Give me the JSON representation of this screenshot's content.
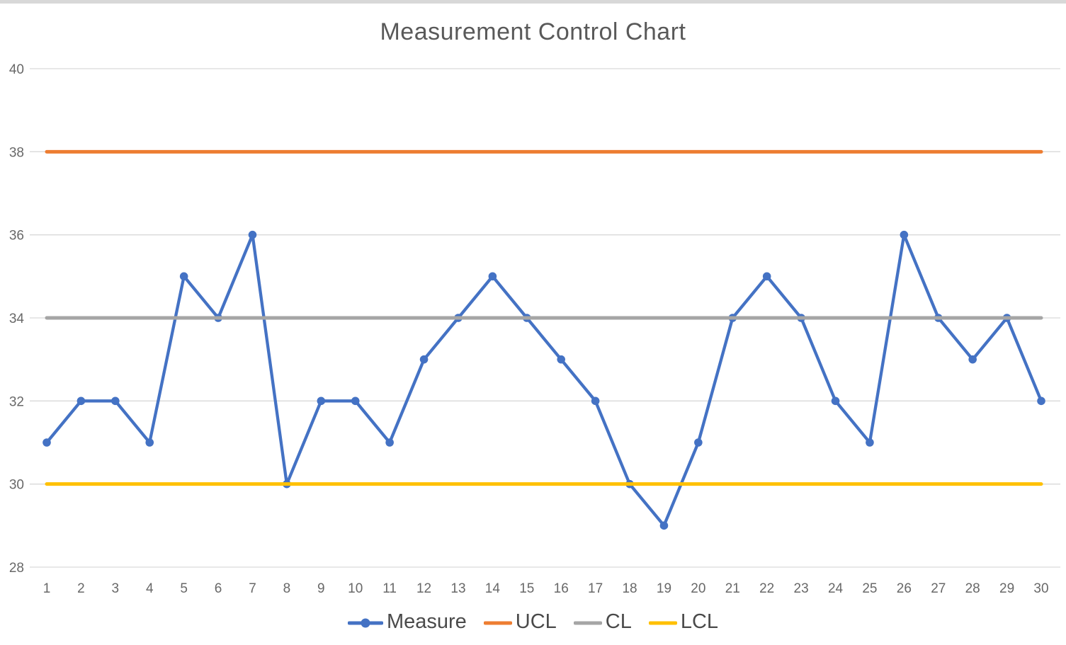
{
  "window": {
    "background": "#ffffff",
    "top_edge_color": "#d8d8d8"
  },
  "chart_data": {
    "type": "line",
    "title": "Measurement Control Chart",
    "title_color": "#595959",
    "x_categories": [
      1,
      2,
      3,
      4,
      5,
      6,
      7,
      8,
      9,
      10,
      11,
      12,
      13,
      14,
      15,
      16,
      17,
      18,
      19,
      20,
      21,
      22,
      23,
      24,
      25,
      26,
      27,
      28,
      29,
      30
    ],
    "series": [
      {
        "name": "Measure",
        "color": "#4472C4",
        "marker": "circle",
        "values": [
          31,
          32,
          32,
          31,
          35,
          34,
          36,
          30,
          32,
          32,
          31,
          33,
          34,
          35,
          34,
          33,
          32,
          30,
          29,
          31,
          34,
          35,
          34,
          32,
          31,
          36,
          34,
          33,
          34,
          32
        ]
      },
      {
        "name": "UCL",
        "color": "#ED7D31",
        "constant_value": 38
      },
      {
        "name": "CL",
        "color": "#A5A5A5",
        "constant_value": 34
      },
      {
        "name": "LCL",
        "color": "#FFC000",
        "constant_value": 30
      }
    ],
    "ylim": [
      28,
      40
    ],
    "yticks": [
      28,
      30,
      32,
      34,
      36,
      38,
      40
    ],
    "grid": true,
    "gridline_color": "#D9D9D9",
    "tick_label_color": "#686868",
    "legend_position": "bottom",
    "legend_text_color": "#4a4a4a"
  }
}
